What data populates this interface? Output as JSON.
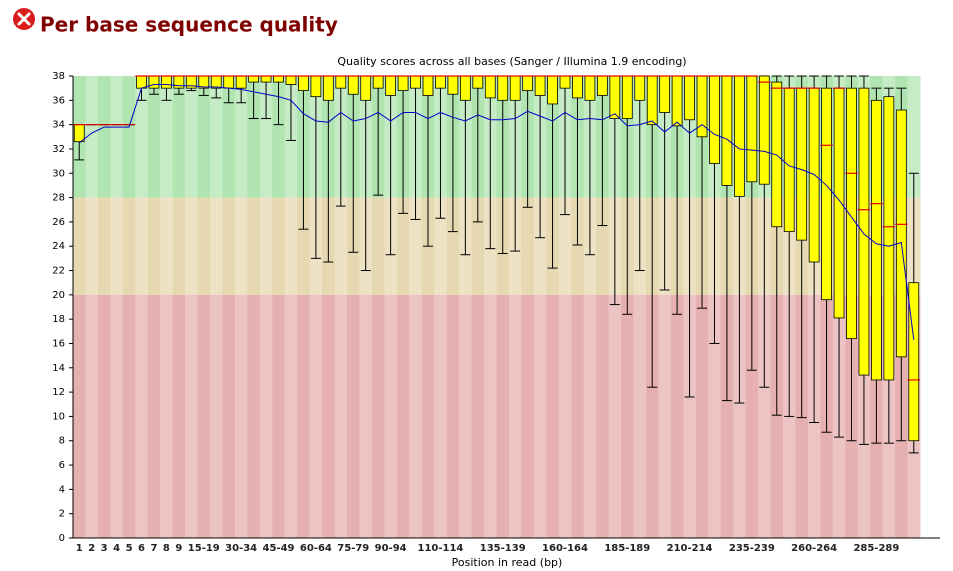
{
  "header": {
    "title": "Per base sequence quality"
  },
  "chart_data": {
    "type": "box",
    "title": "Quality scores across all bases (Sanger / Illumina 1.9 encoding)",
    "x_label": "Position in read (bp)",
    "categories": [
      "1",
      "2",
      "3",
      "4",
      "5",
      "6",
      "7",
      "8",
      "9",
      null,
      "15-19",
      null,
      null,
      "30-34",
      null,
      null,
      "45-49",
      null,
      null,
      "60-64",
      null,
      null,
      "75-79",
      null,
      null,
      "90-94",
      null,
      null,
      null,
      "110-114",
      null,
      null,
      null,
      null,
      "135-139",
      null,
      null,
      null,
      null,
      "160-164",
      null,
      null,
      null,
      null,
      "185-189",
      null,
      null,
      null,
      null,
      "210-214",
      null,
      null,
      null,
      null,
      "235-239",
      null,
      null,
      null,
      null,
      "260-264",
      null,
      null,
      null,
      null,
      "285-289",
      null,
      null,
      null
    ],
    "mean": [
      32.5,
      33.3,
      33.8,
      33.8,
      33.8,
      37,
      37.3,
      37.3,
      37.2,
      37.2,
      37.1,
      37.1,
      37,
      36.9,
      36.7,
      36.5,
      36.3,
      36,
      34.9,
      34.3,
      34.2,
      35,
      34.3,
      34.5,
      35,
      34.3,
      35,
      35,
      34.5,
      35,
      34.6,
      34.3,
      34.8,
      34.4,
      34.4,
      34.5,
      35.1,
      34.7,
      34.3,
      35,
      34.4,
      34.5,
      34.4,
      34.9,
      33.9,
      34,
      34.3,
      33.4,
      34.2,
      33.3,
      34,
      33.2,
      32.8,
      32,
      31.9,
      31.8,
      31.5,
      30.6,
      30.3,
      29.9,
      29,
      27.8,
      26.4,
      25,
      24.2,
      24,
      24.3,
      16.3
    ],
    "median": [
      34,
      34,
      34,
      34,
      34,
      38,
      38,
      38,
      38,
      38,
      38,
      38,
      38,
      38,
      38,
      38,
      38,
      38,
      38,
      38,
      38,
      38,
      38,
      38,
      38,
      38,
      38,
      38,
      38,
      38,
      38,
      38,
      38,
      38,
      38,
      38,
      38,
      38,
      38,
      38,
      38,
      38,
      38,
      38,
      38,
      38,
      38,
      38,
      38,
      38,
      38,
      38,
      38,
      38,
      38,
      37.5,
      37,
      37,
      37,
      37,
      32.3,
      37,
      30,
      27,
      27.5,
      25.6,
      25.8,
      13
    ],
    "q1": [
      32.6,
      34,
      34,
      34,
      34,
      37,
      37,
      37,
      37,
      37,
      37,
      37,
      37,
      37,
      37.5,
      37.5,
      37.5,
      37.3,
      36.8,
      36.3,
      36,
      37,
      36.5,
      36,
      37,
      36.4,
      36.8,
      37,
      36.4,
      37,
      36.5,
      36,
      37,
      36.2,
      36,
      36,
      36.8,
      36.4,
      35.7,
      37,
      36.2,
      36,
      36.4,
      34.5,
      34.5,
      36,
      34,
      35,
      33.9,
      34.4,
      33,
      30.8,
      29,
      28.1,
      29.3,
      29.1,
      25.6,
      25.2,
      24.5,
      22.7,
      19.6,
      18.1,
      16.4,
      13.4,
      13,
      13,
      14.9,
      8
    ],
    "q3": [
      34,
      34,
      34,
      34,
      34,
      38,
      38,
      38,
      38,
      38,
      38,
      38,
      38,
      38,
      38,
      38,
      38,
      38,
      38,
      38,
      38,
      38,
      38,
      38,
      38,
      38,
      38,
      38,
      38,
      38,
      38,
      38,
      38,
      38,
      38,
      38,
      38,
      38,
      38,
      38,
      38,
      38,
      38,
      38,
      38,
      38,
      38,
      38,
      38,
      38,
      38,
      38,
      38,
      38,
      38,
      38,
      37.5,
      37,
      37,
      37,
      37,
      37,
      37,
      37,
      36,
      36.3,
      35.2,
      21
    ],
    "p10": [
      31.1,
      34,
      34,
      34,
      34,
      36,
      36.5,
      36,
      36.5,
      36.8,
      36.4,
      36.2,
      35.8,
      35.8,
      34.5,
      34.5,
      34,
      32.7,
      25.4,
      23,
      22.7,
      27.3,
      23.5,
      22,
      28.2,
      23.3,
      26.7,
      26.2,
      24,
      26.3,
      25.2,
      23.3,
      26,
      23.8,
      23.4,
      23.6,
      27.2,
      24.7,
      22.2,
      26.6,
      24.1,
      23.3,
      25.7,
      19.2,
      18.4,
      22,
      12.4,
      20.4,
      18.4,
      11.6,
      18.9,
      16,
      11.3,
      11.1,
      13.8,
      12.4,
      10.1,
      10,
      9.9,
      9.5,
      8.7,
      8.3,
      8,
      7.7,
      7.8,
      7.8,
      8,
      7
    ],
    "p90": [
      34,
      34,
      34,
      34,
      34,
      38,
      38,
      38,
      38,
      38,
      38,
      38,
      38,
      38,
      38,
      38,
      38,
      38,
      38,
      38,
      38,
      38,
      38,
      38,
      38,
      38,
      38,
      38,
      38,
      38,
      38,
      38,
      38,
      38,
      38,
      38,
      38,
      38,
      38,
      38,
      38,
      38,
      38,
      38,
      38,
      38,
      38,
      38,
      38,
      38,
      38,
      38,
      38,
      38,
      38,
      38,
      38,
      38,
      38,
      38,
      38,
      38,
      38,
      38,
      37,
      37,
      37,
      30
    ],
    "box_color": "#ffff00",
    "median_color": "#e00000",
    "mean_color": "#0000cc",
    "bands": [
      {
        "from": 28,
        "to": 38,
        "colors": [
          "#b0e4b0",
          "#c6ecc6"
        ]
      },
      {
        "from": 20,
        "to": 28,
        "colors": [
          "#e6d8b0",
          "#eee2c4"
        ]
      },
      {
        "from": 0,
        "to": 20,
        "colors": [
          "#e6b0b0",
          "#ecc4c4"
        ]
      }
    ],
    "ylim": [
      0,
      38
    ],
    "yticks": [
      0,
      2,
      4,
      6,
      8,
      10,
      12,
      14,
      16,
      18,
      20,
      22,
      24,
      26,
      28,
      30,
      32,
      34,
      36,
      38
    ]
  }
}
